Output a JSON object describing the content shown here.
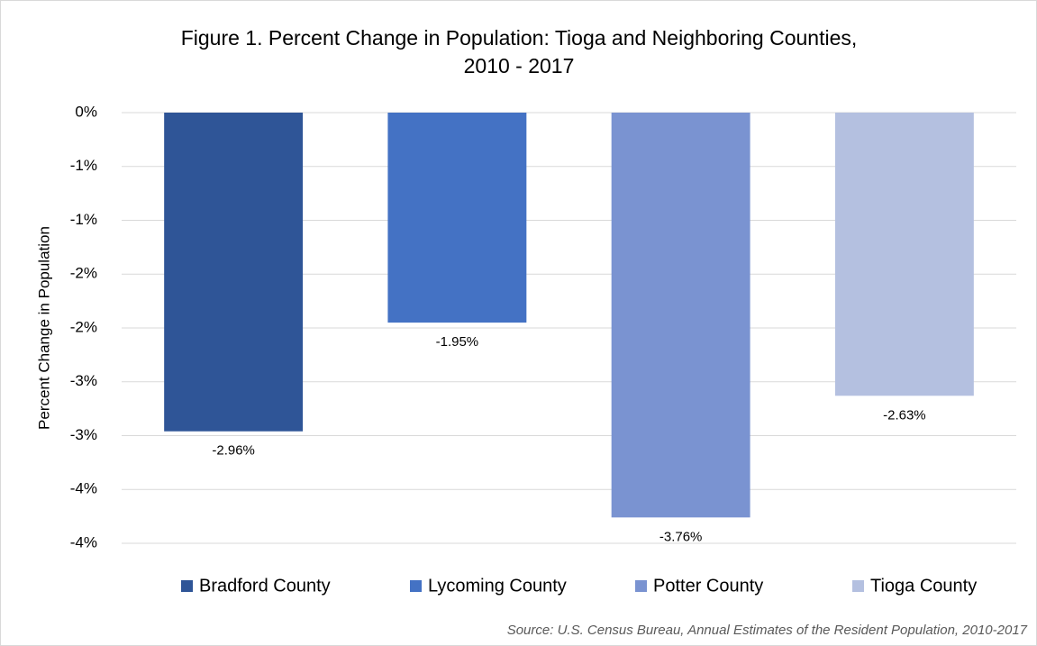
{
  "chart_data": {
    "type": "bar",
    "title": [
      "Figure 1. Percent Change in Population: Tioga and Neighboring Counties,",
      "2010 - 2017"
    ],
    "y_label": "Percent Change in Population",
    "categories": [
      "Bradford County",
      "Lycoming County",
      "Potter County",
      "Tioga County"
    ],
    "values": [
      -2.96,
      -1.95,
      -3.76,
      -2.63
    ],
    "value_labels": [
      "-2.96%",
      "-1.95%",
      "-3.76%",
      "-2.63%"
    ],
    "colors": [
      "#2f5597",
      "#4472c4",
      "#7a93d1",
      "#b4c0e0"
    ],
    "ylim": [
      -4,
      0
    ],
    "yticks": [
      {
        "value": 0,
        "label": "0%"
      },
      {
        "value": -0.5,
        "label": "-1%"
      },
      {
        "value": -1,
        "label": "-1%"
      },
      {
        "value": -1.5,
        "label": "-2%"
      },
      {
        "value": -2,
        "label": "-2%"
      },
      {
        "value": -2.5,
        "label": "-3%"
      },
      {
        "value": -3,
        "label": "-3%"
      },
      {
        "value": -3.5,
        "label": "-4%"
      },
      {
        "value": -4,
        "label": "-4%"
      }
    ],
    "grid": true,
    "legend": "bottom",
    "source": "Source: U.S. Census Bureau, Annual Estimates of the Resident Population, 2010-2017"
  }
}
